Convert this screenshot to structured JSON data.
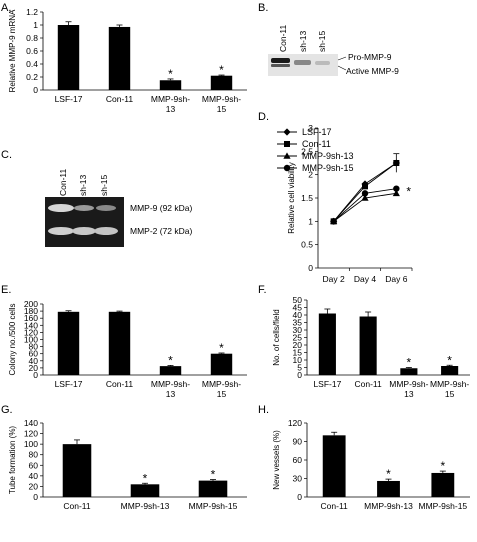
{
  "panel_letters": {
    "A": "A.",
    "B": "B.",
    "C": "C.",
    "D": "D.",
    "E": "E.",
    "F": "F.",
    "G": "G.",
    "H": "H."
  },
  "blot_B": {
    "lanes": [
      "Con-11",
      "sh-13",
      "sh-15"
    ],
    "bands": [
      "Pro-MMP-9",
      "Active MMP-9"
    ]
  },
  "gel_C": {
    "lanes": [
      "Con-11",
      "sh-13",
      "sh-15"
    ],
    "bands": [
      "MMP-9 (92 kDa)",
      "MMP-2 (72 kDa)"
    ]
  },
  "chart_data": [
    {
      "panel": "A",
      "type": "bar",
      "ylabel": "Relative MMP-9 mRNA",
      "categories": [
        "LSF-17",
        "Con-11",
        "MMP-9sh-13",
        "MMP-9sh-15"
      ],
      "category_lines": [
        [
          "LSF-17"
        ],
        [
          "Con-11"
        ],
        [
          "MMP-9sh-",
          "13"
        ],
        [
          "MMP-9sh-",
          "15"
        ]
      ],
      "values": [
        1.0,
        0.97,
        0.15,
        0.22
      ],
      "errors": [
        0.05,
        0.03,
        0.02,
        0.01
      ],
      "significant": [
        false,
        false,
        true,
        true
      ],
      "ylim": [
        0,
        1.2
      ],
      "yticks": [
        0,
        0.2,
        0.4,
        0.6,
        0.8,
        1.0,
        1.2
      ],
      "ytick_labels": [
        "0",
        "0.2",
        "0.4",
        "0.6",
        "0.8",
        "1",
        "1.2"
      ]
    },
    {
      "panel": "D",
      "type": "line",
      "ylabel": "Relative cell viability",
      "x": [
        "Day 2",
        "Day 4",
        "Day 6"
      ],
      "series": [
        {
          "name": "LSF-17",
          "marker": "diamond",
          "values": [
            1.0,
            1.8,
            2.25
          ]
        },
        {
          "name": "Con-11",
          "marker": "square",
          "values": [
            1.0,
            1.75,
            2.25
          ]
        },
        {
          "name": "MMP-9sh-13",
          "marker": "triangle",
          "values": [
            1.0,
            1.5,
            1.6
          ]
        },
        {
          "name": "MMP-9sh-15",
          "marker": "circle",
          "values": [
            1.0,
            1.6,
            1.7
          ]
        }
      ],
      "significant_note": "*",
      "ylim": [
        0,
        3
      ],
      "yticks": [
        0,
        0.5,
        1,
        1.5,
        2,
        2.5,
        3
      ],
      "ytick_labels": [
        "0",
        "0.5",
        "1",
        "1.5",
        "2",
        "2.5",
        "3"
      ]
    },
    {
      "panel": "E",
      "type": "bar",
      "ylabel": "Colony no./500 cells",
      "categories": [
        "LSF-17",
        "Con-11",
        "MMP-9sh-13",
        "MMP-9sh-15"
      ],
      "category_lines": [
        [
          "LSF-17"
        ],
        [
          "Con-11"
        ],
        [
          "MMP-9sh-",
          "13"
        ],
        [
          "MMP-9sh-",
          "15"
        ]
      ],
      "values": [
        178,
        178,
        25,
        60
      ],
      "errors": [
        3,
        2,
        2,
        2
      ],
      "significant": [
        false,
        false,
        true,
        true
      ],
      "ylim": [
        0,
        200
      ],
      "yticks": [
        0,
        20,
        40,
        60,
        80,
        100,
        120,
        140,
        160,
        180,
        200
      ],
      "ytick_labels": [
        "0",
        "20",
        "40",
        "60",
        "80",
        "100",
        "120",
        "140",
        "160",
        "180",
        "200"
      ]
    },
    {
      "panel": "F",
      "type": "bar",
      "ylabel": "No. of cells/field",
      "categories": [
        "LSF-17",
        "Con-11",
        "MMP-9sh-13",
        "MMP-9sh-15"
      ],
      "category_lines": [
        [
          "LSF-17"
        ],
        [
          "Con-11"
        ],
        [
          "MMP-9sh-",
          "13"
        ],
        [
          "MMP-9sh-",
          "15"
        ]
      ],
      "values": [
        41,
        39,
        4.5,
        6
      ],
      "errors": [
        3,
        3,
        0.5,
        0.5
      ],
      "significant": [
        false,
        false,
        true,
        true
      ],
      "ylim": [
        0,
        50
      ],
      "yticks": [
        0,
        5,
        10,
        15,
        20,
        25,
        30,
        35,
        40,
        45,
        50
      ],
      "ytick_labels": [
        "0",
        "5",
        "10",
        "15",
        "20",
        "25",
        "30",
        "35",
        "40",
        "45",
        "50"
      ]
    },
    {
      "panel": "G",
      "type": "bar",
      "ylabel": "Tube formation (%)",
      "categories": [
        "Con-11",
        "MMP-9sh-13",
        "MMP-9sh-15"
      ],
      "category_lines": [
        [
          "Con-11"
        ],
        [
          "MMP-9sh-13"
        ],
        [
          "MMP-9sh-15"
        ]
      ],
      "values": [
        100,
        24,
        31
      ],
      "errors": [
        8,
        2,
        2
      ],
      "significant": [
        false,
        true,
        true
      ],
      "ylim": [
        0,
        140
      ],
      "yticks": [
        0,
        20,
        40,
        60,
        80,
        100,
        120,
        140
      ],
      "ytick_labels": [
        "0",
        "20",
        "40",
        "60",
        "80",
        "100",
        "120",
        "140"
      ]
    },
    {
      "panel": "H",
      "type": "bar",
      "ylabel": "New vessels (%)",
      "categories": [
        "Con-11",
        "MMP-9sh-13",
        "MMP-9sh-15"
      ],
      "category_lines": [
        [
          "Con-11"
        ],
        [
          "MMP-9sh-13"
        ],
        [
          "MMP-9sh-15"
        ]
      ],
      "values": [
        100,
        26,
        39
      ],
      "errors": [
        5,
        3,
        3
      ],
      "significant": [
        false,
        true,
        true
      ],
      "ylim": [
        0,
        120
      ],
      "yticks": [
        0,
        30,
        60,
        90,
        120
      ],
      "ytick_labels": [
        "0",
        "30",
        "60",
        "90",
        "120"
      ]
    }
  ]
}
